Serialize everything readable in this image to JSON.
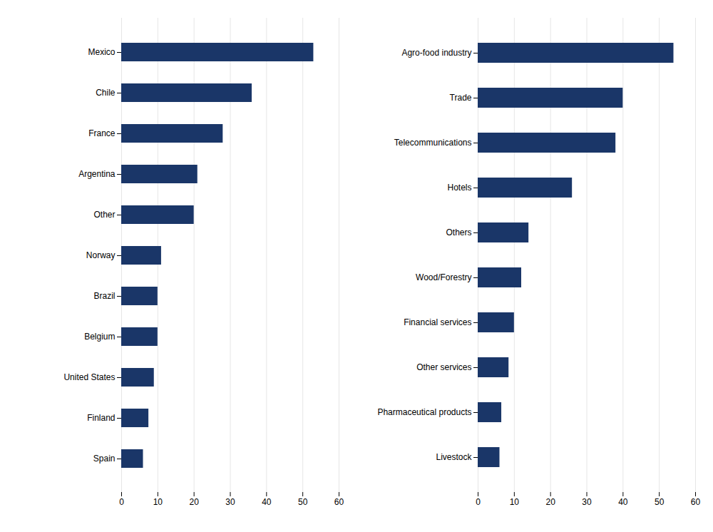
{
  "chart_data": [
    {
      "type": "bar",
      "orientation": "horizontal",
      "categories": [
        "Mexico",
        "Chile",
        "France",
        "Argentina",
        "Other",
        "Norway",
        "Brazil",
        "Belgium",
        "United States",
        "Finland",
        "Spain"
      ],
      "values": [
        53,
        36,
        28,
        21,
        20,
        11,
        10,
        10,
        9,
        7.5,
        6
      ],
      "color": "#1a3668",
      "xlim": [
        0,
        60
      ],
      "xticks": [
        0,
        10,
        20,
        30,
        40,
        50,
        60
      ],
      "grid": true
    },
    {
      "type": "bar",
      "orientation": "horizontal",
      "categories": [
        "Agro-food industry",
        "Trade",
        "Telecommunications",
        "Hotels",
        "Others",
        "Wood/Forestry",
        "Financial services",
        "Other services",
        "Pharmaceutical products",
        "Livestock"
      ],
      "values": [
        54,
        40,
        38,
        26,
        14,
        12,
        10,
        8.5,
        6.5,
        6
      ],
      "color": "#1a3668",
      "xlim": [
        0,
        60
      ],
      "xticks": [
        0,
        10,
        20,
        30,
        40,
        50,
        60
      ],
      "grid": true
    }
  ]
}
